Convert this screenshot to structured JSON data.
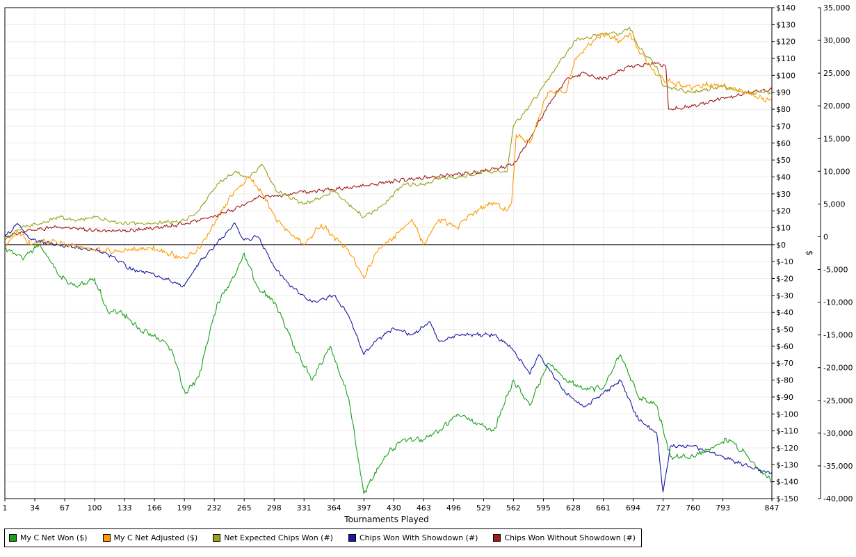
{
  "chart_data": {
    "type": "line",
    "title": "",
    "xlabel": "Tournaments Played",
    "ylabel": "$",
    "xlim": [
      1,
      847
    ],
    "x_ticks": [
      1,
      34,
      67,
      100,
      133,
      166,
      199,
      232,
      265,
      298,
      331,
      364,
      397,
      430,
      463,
      496,
      529,
      562,
      595,
      628,
      661,
      694,
      727,
      760,
      793,
      847
    ],
    "y_dollar": {
      "min": -150,
      "max": 140,
      "step": 10,
      "tick_labels": [
        "$140",
        "$130",
        "$120",
        "$110",
        "$100",
        "$90",
        "$80",
        "$70",
        "$60",
        "$50",
        "$40",
        "$30",
        "$20",
        "$10",
        "$0",
        "$-10",
        "$-20",
        "$-30",
        "$-40",
        "$-50",
        "$-60",
        "$-70",
        "$-80",
        "$-90",
        "$-100",
        "$-110",
        "$-120",
        "$-130",
        "$-140",
        "$-150"
      ]
    },
    "y_chips": {
      "min": -40000,
      "max": 35000,
      "step": 5000,
      "tick_labels": [
        "35,000",
        "30,000",
        "25,000",
        "20,000",
        "15,000",
        "10,000",
        "5,000",
        "0",
        "-5,000",
        "-10,000",
        "-15,000",
        "-20,000",
        "-25,000",
        "-30,000",
        "-35,000",
        "-40,000"
      ]
    },
    "grid": true,
    "legend_position": "bottom-left",
    "series": [
      {
        "name": "My C Net Won ($)",
        "color": "#1aa01a",
        "axis": "dollar",
        "x": [
          1,
          20,
          40,
          60,
          80,
          100,
          115,
          130,
          150,
          170,
          185,
          200,
          215,
          235,
          255,
          265,
          280,
          300,
          320,
          340,
          360,
          380,
          397,
          420,
          440,
          460,
          480,
          500,
          520,
          540,
          562,
          580,
          600,
          620,
          640,
          660,
          680,
          700,
          720,
          735,
          760,
          780,
          800,
          820,
          847
        ],
        "y": [
          -2,
          -8,
          0,
          -18,
          -25,
          -20,
          -40,
          -40,
          -50,
          -55,
          -62,
          -88,
          -78,
          -35,
          -18,
          -5,
          -25,
          -35,
          -60,
          -80,
          -60,
          -90,
          -147,
          -125,
          -115,
          -115,
          -110,
          -100,
          -105,
          -110,
          -80,
          -95,
          -70,
          -80,
          -85,
          -85,
          -65,
          -90,
          -95,
          -125,
          -125,
          -120,
          -115,
          -125,
          -140
        ]
      },
      {
        "name": "My C Net Adjusted ($)",
        "color": "#ff9900",
        "axis": "dollar",
        "x": [
          1,
          15,
          30,
          50,
          70,
          100,
          130,
          160,
          180,
          200,
          215,
          235,
          255,
          270,
          285,
          300,
          320,
          331,
          350,
          364,
          380,
          397,
          410,
          430,
          450,
          463,
          480,
          500,
          520,
          540,
          555,
          560,
          565,
          580,
          590,
          600,
          620,
          630,
          660,
          680,
          690,
          700,
          720,
          740,
          760,
          780,
          800,
          820,
          830,
          847
        ],
        "y": [
          -2,
          8,
          0,
          2,
          0,
          -3,
          -4,
          -2,
          -5,
          -8,
          -2,
          15,
          32,
          40,
          30,
          15,
          5,
          0,
          12,
          5,
          -3,
          -20,
          -5,
          5,
          15,
          0,
          15,
          10,
          20,
          25,
          20,
          25,
          65,
          60,
          75,
          90,
          90,
          110,
          125,
          120,
          125,
          115,
          100,
          95,
          93,
          95,
          93,
          90,
          87,
          85
        ]
      },
      {
        "name": "Net Expected Chips Won (#)",
        "color": "#9aa01a",
        "axis": "chips",
        "x": [
          1,
          20,
          40,
          60,
          80,
          100,
          130,
          160,
          200,
          215,
          235,
          255,
          270,
          285,
          300,
          331,
          350,
          364,
          380,
          397,
          420,
          440,
          463,
          480,
          500,
          530,
          555,
          562,
          580,
          595,
          610,
          630,
          660,
          680,
          690,
          700,
          720,
          727,
          760,
          790,
          820,
          847
        ],
        "y": [
          -500,
          1500,
          2000,
          3000,
          2500,
          3000,
          2000,
          2000,
          2500,
          4000,
          8000,
          10000,
          9000,
          11000,
          7000,
          5000,
          6000,
          7000,
          5000,
          3000,
          5000,
          8000,
          8000,
          9000,
          9000,
          10000,
          10000,
          17000,
          20000,
          23000,
          26000,
          30000,
          31000,
          31000,
          32000,
          29000,
          26000,
          23000,
          22000,
          23000,
          22000,
          22000
        ]
      },
      {
        "name": "Chips Won With Showdown (#)",
        "color": "#1a1aa0",
        "axis": "chips",
        "x": [
          1,
          15,
          30,
          50,
          70,
          100,
          120,
          140,
          160,
          180,
          199,
          215,
          235,
          255,
          265,
          280,
          300,
          320,
          340,
          364,
          380,
          397,
          410,
          430,
          450,
          470,
          480,
          500,
          520,
          540,
          560,
          575,
          580,
          590,
          600,
          620,
          640,
          660,
          680,
          700,
          720,
          727,
          735,
          760,
          780,
          800,
          820,
          840,
          847
        ],
        "y": [
          0,
          2000,
          -500,
          -1000,
          -1500,
          -2000,
          -3000,
          -5000,
          -5500,
          -6500,
          -7500,
          -4000,
          -1000,
          2000,
          -500,
          0,
          -5000,
          -8000,
          -10000,
          -9000,
          -12000,
          -18000,
          -16000,
          -14000,
          -15000,
          -13000,
          -16000,
          -15000,
          -15000,
          -15000,
          -17000,
          -20000,
          -21000,
          -18000,
          -20000,
          -24000,
          -26000,
          -24000,
          -22000,
          -28000,
          -30000,
          -39000,
          -32000,
          -32000,
          -33000,
          -34000,
          -35000,
          -36000,
          -36000
        ]
      },
      {
        "name": "Chips Won Without Showdown (#)",
        "color": "#a01a1a",
        "axis": "chips",
        "x": [
          1,
          30,
          60,
          100,
          130,
          160,
          200,
          230,
          260,
          280,
          300,
          330,
          360,
          397,
          430,
          463,
          500,
          530,
          562,
          580,
          600,
          620,
          640,
          660,
          690,
          720,
          730,
          733,
          760,
          790,
          820,
          847
        ],
        "y": [
          0,
          1000,
          1500,
          1000,
          800,
          1200,
          2000,
          3000,
          4500,
          6000,
          6200,
          6800,
          7200,
          7800,
          8500,
          9000,
          9500,
          10000,
          11000,
          15000,
          20000,
          24000,
          25000,
          24000,
          26000,
          26500,
          26000,
          19500,
          20000,
          21000,
          22000,
          22500
        ]
      }
    ]
  }
}
